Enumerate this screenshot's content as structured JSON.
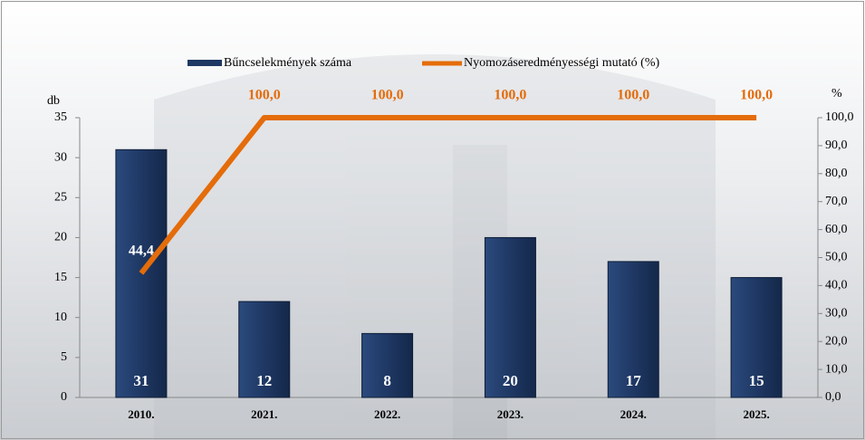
{
  "chart_data": {
    "type": "bar_line",
    "categories": [
      "2010.",
      "2021.",
      "2022.",
      "2023.",
      "2024.",
      "2025."
    ],
    "y_label": "db",
    "y2_label": "%",
    "series": [
      {
        "name": "Bűncselekmények száma",
        "type": "bar",
        "color": "#1f3864",
        "values": [
          31,
          12,
          8,
          20,
          17,
          15
        ]
      },
      {
        "name": "Nyomozáseredményességi mutató (%)",
        "type": "line",
        "axis": "y2",
        "color": "#e46c0a",
        "values": [
          44.4,
          100,
          100,
          100,
          100,
          100
        ],
        "value_labels": [
          "44,4",
          "100,0",
          "100,0",
          "100,0",
          "100,0",
          "100,0"
        ]
      }
    ],
    "ylim": [
      0,
      35
    ],
    "yticks": [
      0,
      5,
      10,
      15,
      20,
      25,
      30,
      35
    ],
    "y2lim": [
      0,
      100
    ],
    "y2ticks": [
      {
        "value": 0,
        "label": "0,0"
      },
      {
        "value": 10,
        "label": "10,0"
      },
      {
        "value": 20,
        "label": "20,0"
      },
      {
        "value": 30,
        "label": "30,0"
      },
      {
        "value": 40,
        "label": "40,0"
      },
      {
        "value": 50,
        "label": "50,0"
      },
      {
        "value": 60,
        "label": "60,0"
      },
      {
        "value": 70,
        "label": "70,0"
      },
      {
        "value": 80,
        "label": "80,0"
      },
      {
        "value": 90,
        "label": "90,0"
      },
      {
        "value": 100,
        "label": "100,0"
      }
    ],
    "legend": "top"
  }
}
